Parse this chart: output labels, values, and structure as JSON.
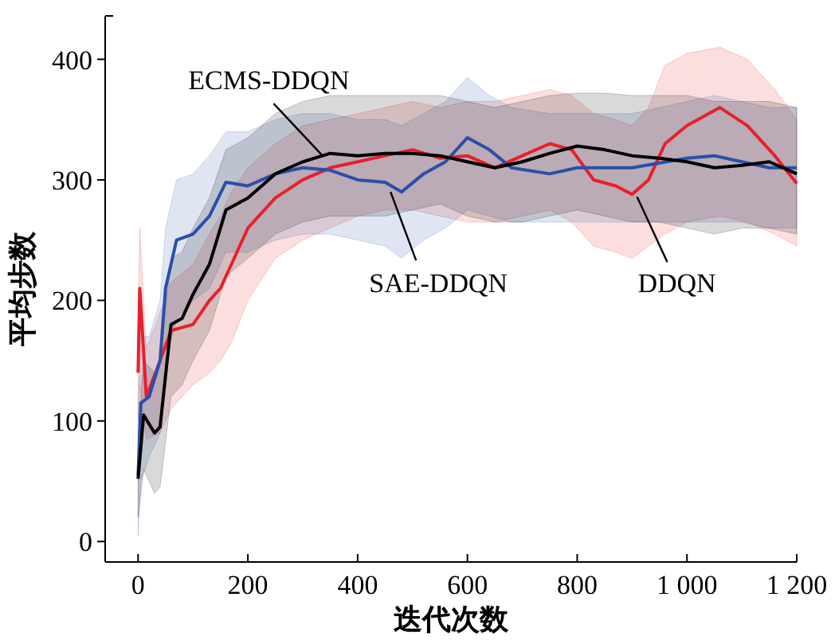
{
  "chart_data": {
    "type": "line",
    "xlabel": "迭代次数",
    "ylabel": "平均步数",
    "xlim": [
      -60,
      1200
    ],
    "ylim": [
      -17,
      436
    ],
    "xticks": [
      0,
      200,
      400,
      600,
      800,
      {
        "value": 1000,
        "label": "1 000"
      },
      {
        "value": 1200,
        "label": "1 200"
      }
    ],
    "yticks": [
      0,
      100,
      200,
      300,
      400
    ],
    "grid": false,
    "marker": "none",
    "line_style": "solid",
    "series": [
      {
        "color": "#e8202a",
        "x": [
          0,
          3,
          15,
          40,
          60,
          100,
          130,
          150,
          170,
          200,
          250,
          300,
          350,
          400,
          450,
          500,
          550,
          600,
          650,
          700,
          750,
          790,
          830,
          870,
          900,
          930,
          960,
          1000,
          1060,
          1110,
          1160,
          1200
        ],
        "values": [
          140,
          210,
          120,
          150,
          175,
          180,
          200,
          210,
          230,
          260,
          285,
          300,
          310,
          315,
          320,
          325,
          318,
          320,
          310,
          320,
          330,
          325,
          300,
          295,
          288,
          300,
          330,
          345,
          360,
          345,
          320,
          297
        ],
        "lower": [
          100,
          130,
          85,
          90,
          110,
          130,
          140,
          150,
          165,
          200,
          235,
          250,
          260,
          270,
          275,
          275,
          270,
          265,
          265,
          270,
          275,
          265,
          245,
          240,
          235,
          245,
          255,
          265,
          270,
          265,
          255,
          245
        ],
        "upper": [
          180,
          260,
          160,
          190,
          215,
          230,
          255,
          270,
          290,
          310,
          330,
          345,
          350,
          355,
          360,
          365,
          360,
          365,
          365,
          370,
          375,
          370,
          355,
          350,
          345,
          360,
          395,
          405,
          410,
          400,
          375,
          350
        ]
      },
      {
        "color": "#2a4fa8",
        "x": [
          0,
          5,
          20,
          40,
          50,
          70,
          100,
          130,
          160,
          200,
          250,
          300,
          350,
          400,
          450,
          480,
          520,
          560,
          600,
          640,
          680,
          750,
          800,
          900,
          1000,
          1050,
          1100,
          1150,
          1200
        ],
        "values": [
          55,
          115,
          120,
          150,
          210,
          250,
          255,
          270,
          298,
          295,
          305,
          310,
          308,
          300,
          298,
          290,
          305,
          315,
          335,
          325,
          310,
          305,
          310,
          310,
          318,
          320,
          315,
          310,
          310
        ],
        "lower": [
          5,
          50,
          70,
          90,
          150,
          185,
          200,
          210,
          240,
          240,
          250,
          255,
          255,
          250,
          245,
          235,
          250,
          260,
          275,
          270,
          265,
          265,
          265,
          265,
          265,
          265,
          265,
          260,
          260
        ],
        "upper": [
          110,
          170,
          170,
          200,
          260,
          300,
          305,
          320,
          340,
          340,
          350,
          355,
          355,
          350,
          350,
          345,
          355,
          365,
          385,
          370,
          360,
          355,
          355,
          355,
          365,
          370,
          365,
          360,
          360
        ]
      },
      {
        "color": "#000000",
        "x": [
          0,
          10,
          30,
          40,
          60,
          80,
          100,
          130,
          160,
          200,
          250,
          300,
          350,
          400,
          450,
          500,
          550,
          600,
          650,
          700,
          750,
          800,
          850,
          900,
          950,
          1000,
          1050,
          1100,
          1150,
          1200
        ],
        "values": [
          52,
          105,
          90,
          95,
          180,
          185,
          205,
          230,
          275,
          285,
          305,
          315,
          322,
          320,
          322,
          322,
          320,
          315,
          310,
          315,
          322,
          328,
          325,
          320,
          318,
          315,
          310,
          312,
          315,
          305
        ],
        "lower": [
          20,
          60,
          40,
          45,
          120,
          130,
          150,
          175,
          220,
          235,
          255,
          265,
          270,
          270,
          270,
          275,
          280,
          270,
          265,
          265,
          270,
          275,
          270,
          265,
          265,
          260,
          255,
          260,
          260,
          255
        ],
        "upper": [
          90,
          150,
          140,
          150,
          235,
          240,
          260,
          285,
          325,
          335,
          355,
          365,
          370,
          370,
          370,
          370,
          370,
          365,
          360,
          365,
          370,
          372,
          372,
          370,
          370,
          370,
          365,
          365,
          365,
          360
        ]
      }
    ],
    "annotations": [
      {
        "text": "ECMS-DDQN",
        "x": 334,
        "y": 321
      },
      {
        "text": "SAE-DDQN",
        "x": 460,
        "y": 290
      },
      {
        "text": "DDQN",
        "x": 909,
        "y": 286
      }
    ]
  }
}
